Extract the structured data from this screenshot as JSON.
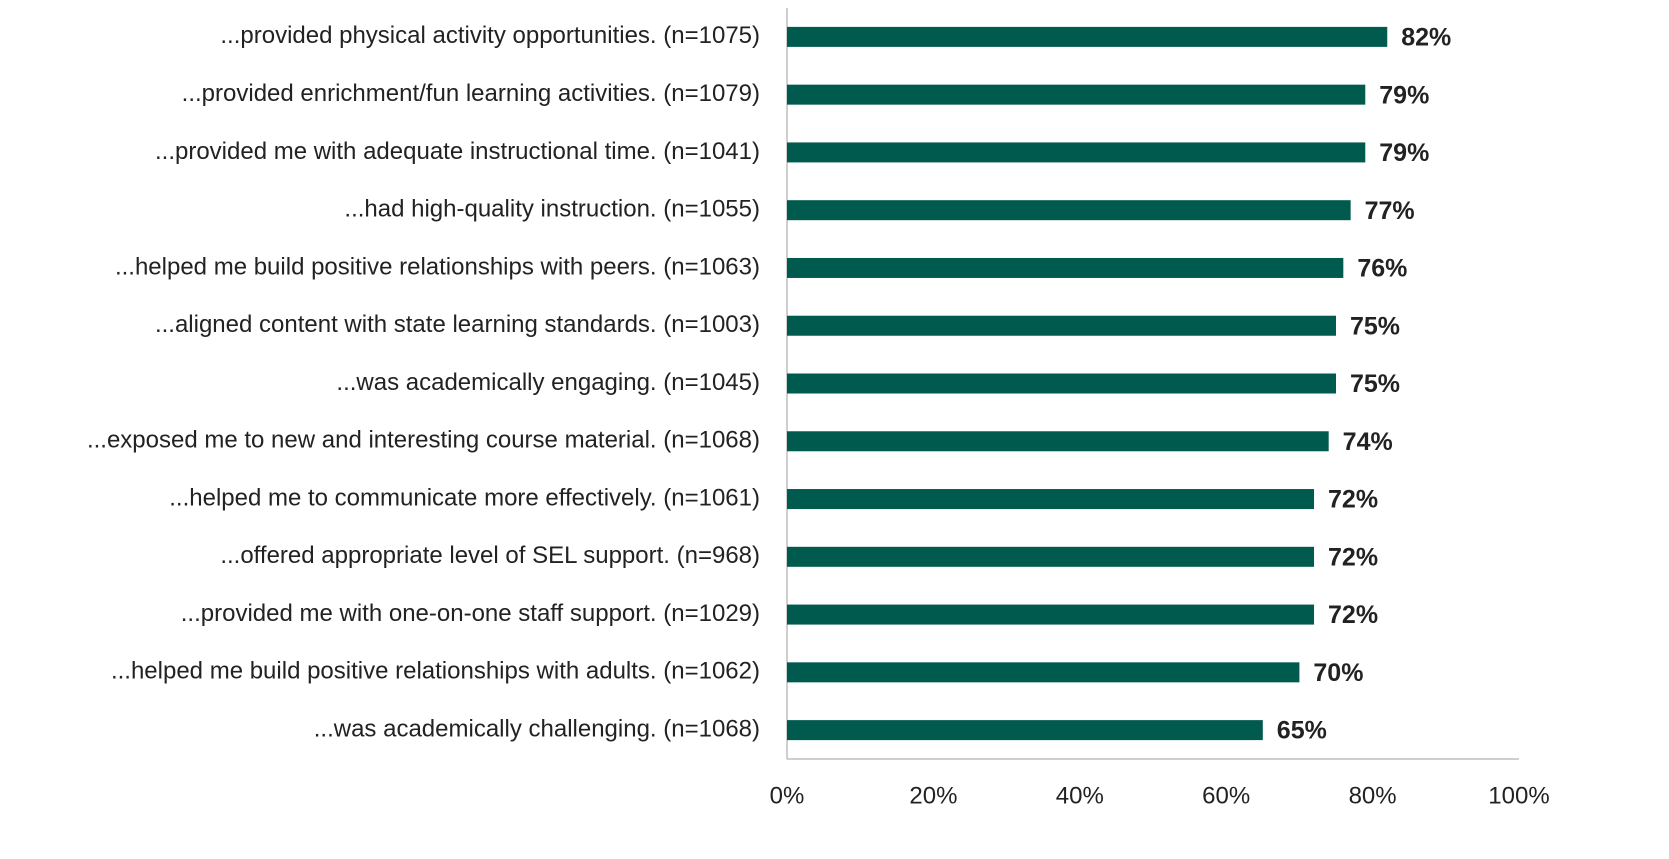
{
  "chart_data": {
    "type": "bar",
    "orientation": "horizontal",
    "categories": [
      "...provided physical activity opportunities. (n=1075)",
      "...provided enrichment/fun learning activities. (n=1079)",
      "...provided me with adequate instructional time. (n=1041)",
      "...had high-quality instruction. (n=1055)",
      "...helped me build positive relationships with peers. (n=1063)",
      "...aligned content with state learning standards. (n=1003)",
      "...was academically engaging. (n=1045)",
      "...exposed me to new and interesting course material. (n=1068)",
      "...helped me to communicate more effectively. (n=1061)",
      "...offered appropriate level of SEL support. (n=968)",
      "...provided me with one-on-one staff support. (n=1029)",
      "...helped me build positive relationships with adults. (n=1062)",
      "...was academically challenging. (n=1068)"
    ],
    "values": [
      82,
      79,
      79,
      77,
      76,
      75,
      75,
      74,
      72,
      72,
      72,
      70,
      65
    ],
    "value_labels": [
      "82%",
      "79%",
      "79%",
      "77%",
      "76%",
      "75%",
      "75%",
      "74%",
      "72%",
      "72%",
      "72%",
      "70%",
      "65%"
    ],
    "color": "#005a4e",
    "xlim": [
      0,
      100
    ],
    "xticks": [
      {
        "value": 0,
        "label": "0%"
      },
      {
        "value": 20,
        "label": "20%"
      },
      {
        "value": 40,
        "label": "40%"
      },
      {
        "value": 60,
        "label": "60%"
      },
      {
        "value": 80,
        "label": "80%"
      },
      {
        "value": 100,
        "label": "100%"
      }
    ],
    "grid": false
  }
}
